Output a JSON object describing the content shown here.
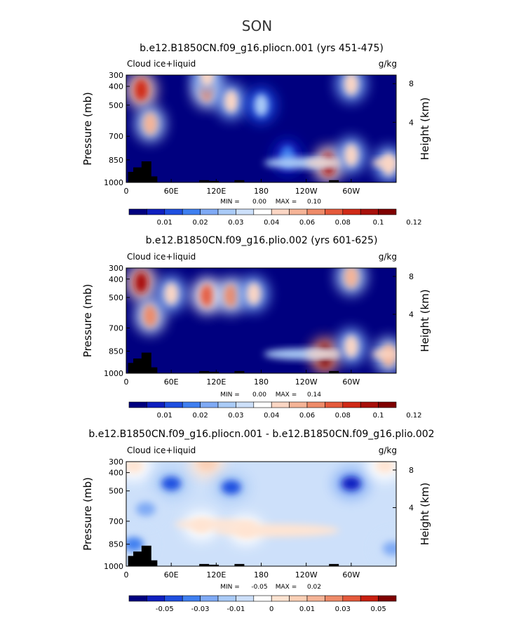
{
  "figure": {
    "season": "SON"
  },
  "chart_data": [
    {
      "type": "heatmap",
      "title": "b.e12.B1850CN.f09_g16.pliocn.001 (yrs 451-475)",
      "left_label": "Cloud ice+liquid",
      "units": "g/kg",
      "ylabel": "Pressure (mb)",
      "ylabel_right": "Height (km)",
      "yticks": [
        "300",
        "400",
        "500",
        "700",
        "850",
        "1000"
      ],
      "yticks_right": [
        "8",
        "4"
      ],
      "xticks": [
        "0",
        "60E",
        "120E",
        "180",
        "120W",
        "60W"
      ],
      "stats": {
        "min_label": "MIN =",
        "min": "0.00",
        "max_label": "MAX =",
        "max": "0.10"
      },
      "colorbar_labels": [
        "0.01",
        "0.02",
        "0.03",
        "0.04",
        "0.06",
        "0.08",
        "0.1",
        "0.12"
      ],
      "features": [
        {
          "lon": 20,
          "p": 420,
          "value": 0.09
        },
        {
          "lon": 32,
          "p": 620,
          "value": 0.06
        },
        {
          "lon": 108,
          "p": 420,
          "value": 0.07
        },
        {
          "lon": 108,
          "p": 300,
          "value": 0.05
        },
        {
          "lon": 140,
          "p": 480,
          "value": 0.05
        },
        {
          "lon": 180,
          "p": 500,
          "value": 0.03
        },
        {
          "lon": 270,
          "p": 880,
          "value": 0.1
        },
        {
          "lon": 300,
          "p": 380,
          "value": 0.05
        },
        {
          "lon": 300,
          "p": 820,
          "value": 0.05
        },
        {
          "lon": 215,
          "p": 830,
          "value": 0.02
        },
        {
          "lon": 350,
          "p": 880,
          "value": 0.05
        }
      ]
    },
    {
      "type": "heatmap",
      "title": "b.e12.B1850CN.f09_g16.plio.002 (yrs 601-625)",
      "left_label": "Cloud ice+liquid",
      "units": "g/kg",
      "ylabel": "Pressure (mb)",
      "ylabel_right": "Height (km)",
      "yticks": [
        "300",
        "400",
        "500",
        "700",
        "850",
        "1000"
      ],
      "yticks_right": [
        "8",
        "4"
      ],
      "xticks": [
        "0",
        "60E",
        "120E",
        "180",
        "120W",
        "60W"
      ],
      "stats": {
        "min_label": "MIN =",
        "min": "0.00",
        "max_label": "MAX =",
        "max": "0.14"
      },
      "colorbar_labels": [
        "0.01",
        "0.02",
        "0.03",
        "0.04",
        "0.06",
        "0.08",
        "0.1",
        "0.12"
      ],
      "features": [
        {
          "lon": 20,
          "p": 420,
          "value": 0.1
        },
        {
          "lon": 32,
          "p": 620,
          "value": 0.07
        },
        {
          "lon": 60,
          "p": 480,
          "value": 0.05
        },
        {
          "lon": 108,
          "p": 490,
          "value": 0.08
        },
        {
          "lon": 140,
          "p": 490,
          "value": 0.07
        },
        {
          "lon": 170,
          "p": 480,
          "value": 0.05
        },
        {
          "lon": 265,
          "p": 880,
          "value": 0.14
        },
        {
          "lon": 300,
          "p": 380,
          "value": 0.06
        },
        {
          "lon": 300,
          "p": 820,
          "value": 0.05
        },
        {
          "lon": 350,
          "p": 880,
          "value": 0.06
        }
      ]
    },
    {
      "type": "heatmap",
      "title": "b.e12.B1850CN.f09_g16.pliocn.001 - b.e12.B1850CN.f09_g16.plio.002",
      "left_label": "Cloud ice+liquid",
      "units": "g/kg",
      "ylabel": "Pressure (mb)",
      "ylabel_right": "Height (km)",
      "yticks": [
        "300",
        "400",
        "500",
        "700",
        "850",
        "1000"
      ],
      "yticks_right": [
        "8",
        "4"
      ],
      "xticks": [
        "0",
        "60E",
        "120E",
        "180",
        "120W",
        "60W"
      ],
      "stats": {
        "min_label": "MIN =",
        "min": "-0.05",
        "max_label": "MAX =",
        "max": "0.02"
      },
      "colorbar_labels": [
        "-0.05",
        "-0.03",
        "-0.01",
        "0",
        "0.01",
        "0.03",
        "0.05"
      ],
      "features": [
        {
          "lon": 10,
          "p": 340,
          "value": 0.01
        },
        {
          "lon": 60,
          "p": 460,
          "value": -0.03
        },
        {
          "lon": 108,
          "p": 320,
          "value": 0.015
        },
        {
          "lon": 140,
          "p": 480,
          "value": -0.03
        },
        {
          "lon": 26,
          "p": 620,
          "value": -0.02
        },
        {
          "lon": 300,
          "p": 460,
          "value": -0.04
        },
        {
          "lon": 100,
          "p": 730,
          "value": 0.006
        },
        {
          "lon": 160,
          "p": 760,
          "value": 0.006
        },
        {
          "lon": 345,
          "p": 340,
          "value": 0.006
        },
        {
          "lon": 10,
          "p": 850,
          "value": -0.025
        },
        {
          "lon": 355,
          "p": 880,
          "value": -0.02
        }
      ]
    }
  ],
  "colors": {
    "seq_scale": [
      "#00007f",
      "#0f1fbf",
      "#1f4fe0",
      "#3f7ff0",
      "#7faaf5",
      "#aacbf7",
      "#cde0fa",
      "#ffffff",
      "#fbd6c4",
      "#f5b497",
      "#ee8b69",
      "#e55a3c",
      "#d02a17",
      "#a8100b",
      "#7f0000"
    ],
    "diff_scale": [
      "#00007f",
      "#0f1fbf",
      "#1f4fe0",
      "#3f7ff0",
      "#7faaf5",
      "#aacbf7",
      "#cde0fa",
      "#ffffff",
      "#ffe4d2",
      "#fbd0b6",
      "#f5b497",
      "#ee8b69",
      "#e55a3c",
      "#c81f10",
      "#7f0000"
    ],
    "diff_background": "#cde0fa",
    "topography": "#000000"
  }
}
